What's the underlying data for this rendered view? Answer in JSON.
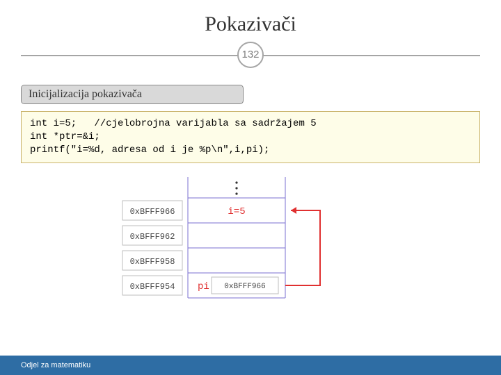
{
  "title": "Pokazivači",
  "page_number": "132",
  "subtitle": "Inicijalizacija pokazivača",
  "code": "int i=5;   //cjelobrojna varijabla sa sadržajem 5\nint *ptr=&i;\nprintf(\"i=%d, adresa od i je %p\\n\",i,pi);",
  "diagram": {
    "addr_color": "#444444",
    "grid_color": "#7a6fd0",
    "red": "#e03030",
    "rows": [
      {
        "addr": "0xBFFF966",
        "label": "i=5",
        "label_color": "#e03030",
        "is_target": true,
        "is_pointer": false
      },
      {
        "addr": "0xBFFF962",
        "label": "",
        "label_color": "",
        "is_target": false,
        "is_pointer": false
      },
      {
        "addr": "0xBFFF958",
        "label": "",
        "label_color": "",
        "is_target": false,
        "is_pointer": false
      },
      {
        "addr": "0xBFFF954",
        "label": "pi",
        "value": "0xBFFF966",
        "label_color": "#e03030",
        "is_target": false,
        "is_pointer": true
      }
    ]
  },
  "footer": "Odjel za matematiku",
  "colors": {
    "badge_border": "#a5a5a5",
    "badge_text": "#7f7f7f",
    "subtitle_bg": "#d9d9d9",
    "code_bg": "#fefde8",
    "code_border": "#c9b36a",
    "footer_bg": "#2e6da4"
  }
}
